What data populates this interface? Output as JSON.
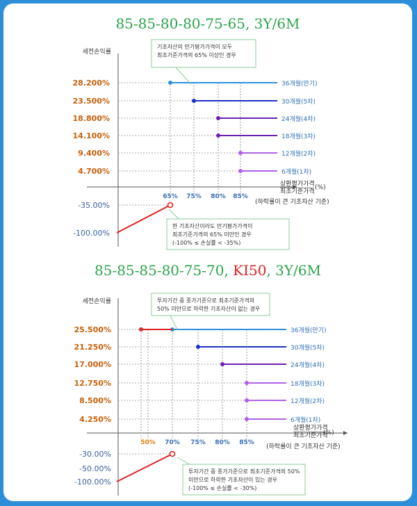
{
  "titles": {
    "t1": "85-85-80-80-75-65, 3Y/6M",
    "t2_main": "85-85-85-80-75-70, ",
    "t2_red": "KI50",
    "t2_tail": ", 3Y/6M"
  },
  "colors": {
    "y_labels": "#c8600a",
    "loss_line": "#e02020",
    "maturity": "#2f8fdc",
    "sixth": "#1a2fc8",
    "fifth": "#6a1fb0",
    "early": "#b061e8",
    "ki_line": "#e02020"
  },
  "chart_data": [
    {
      "type": "line",
      "ylabel": "세전손익률",
      "xlabel_lines": [
        "상환평가가격",
        "최초기준가격"
      ],
      "xlabel_unit": "(%)",
      "xlabel_note": "(하락률이 큰 기초자산 기준)",
      "xticks": [
        "65%",
        "75%",
        "80%",
        "85%"
      ],
      "series": [
        {
          "name": "36개월(만기)",
          "y_label": "28.200%",
          "y": 28.2,
          "barrier": 65,
          "kind": "maturity"
        },
        {
          "name": "30개월(5차)",
          "y_label": "23.500%",
          "y": 23.5,
          "barrier": 75,
          "kind": "sixth"
        },
        {
          "name": "24개월(4차)",
          "y_label": "18.800%",
          "y": 18.8,
          "barrier": 80,
          "kind": "fifth"
        },
        {
          "name": "18개월(3차)",
          "y_label": "14.100%",
          "y": 14.1,
          "barrier": 80,
          "kind": "fifth"
        },
        {
          "name": "12개월(2차)",
          "y_label": "9.400%",
          "y": 9.4,
          "barrier": 85,
          "kind": "early"
        },
        {
          "name": "6개월(1차)",
          "y_label": "4.700%",
          "y": 4.7,
          "barrier": 85,
          "kind": "early"
        }
      ],
      "loss": {
        "y_labels": [
          "-35.00%",
          "-100.00%"
        ],
        "values": [
          -35,
          -100
        ],
        "x_end": 65
      },
      "notes": {
        "top": [
          "기초자산의 만기평가가격이 모두",
          "최초기준가격의 65% 이상인 경우"
        ],
        "bottom": [
          "한 기초자산이라도 만기평가가격이",
          "최초기준가격의 65% 미만인 경우",
          "(-100% ≤ 손실률 < -35%)"
        ]
      }
    },
    {
      "type": "line",
      "ylabel": "세전손익률",
      "xlabel_lines": [
        "상환평가가격",
        "최초기준가격"
      ],
      "xlabel_unit": "(%)",
      "xlabel_note": "(하락률이 큰 기초자산 기준)",
      "xticks": [
        "50%",
        "70%",
        "75%",
        "80%",
        "85%"
      ],
      "series": [
        {
          "name": "36개월(만기)",
          "y_label": "25.500%",
          "y": 25.5,
          "barrier": 70,
          "kind": "maturity"
        },
        {
          "name": "30개월(5차)",
          "y_label": "21.250%",
          "y": 21.25,
          "barrier": 75,
          "kind": "sixth"
        },
        {
          "name": "24개월(4차)",
          "y_label": "17.000%",
          "y": 17.0,
          "barrier": 80,
          "kind": "fifth"
        },
        {
          "name": "18개월(3차)",
          "y_label": "12.750%",
          "y": 12.75,
          "barrier": 85,
          "kind": "early"
        },
        {
          "name": "12개월(2차)",
          "y_label": "8.500%",
          "y": 8.5,
          "barrier": 85,
          "kind": "early"
        },
        {
          "name": "6개월(1차)",
          "y_label": "4.250%",
          "y": 4.25,
          "barrier": 85,
          "kind": "early"
        }
      ],
      "ki_segment": {
        "from": 50,
        "to": 70,
        "y": 25.5
      },
      "loss": {
        "y_labels": [
          "-30.00%",
          "-50.00%",
          "-100.00%"
        ],
        "values": [
          -30,
          -50,
          -100
        ],
        "x_end": 70
      },
      "notes": {
        "top": [
          "투자기간 중 종가기준으로 최초기준가격의",
          "50% 미만으로 하락한 기초자산이 없는 경우"
        ],
        "bottom": [
          "투자기간 중 종가기준으로 최초기준가격의 50%",
          "미만으로 하락한 기초자산이 있는 경우",
          "(-100% ≤ 손실률 < -30%)"
        ]
      }
    }
  ]
}
